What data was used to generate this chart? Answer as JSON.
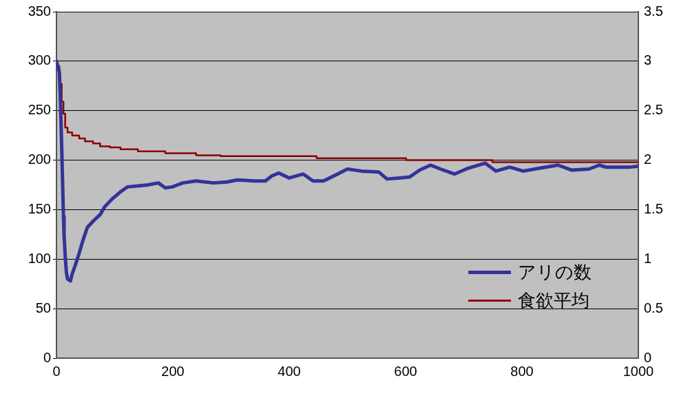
{
  "chart_data": {
    "type": "line",
    "xlim": [
      0,
      1000
    ],
    "xticks": [
      0,
      200,
      400,
      600,
      800,
      1000
    ],
    "ylim": [
      0,
      350
    ],
    "yticks": [
      0,
      50,
      100,
      150,
      200,
      250,
      300,
      350
    ],
    "y2lim": [
      0,
      3.5
    ],
    "y2ticks": [
      0,
      0.5,
      1,
      1.5,
      2,
      2.5,
      3,
      3.5
    ],
    "grid": "y",
    "legend": "bottom right",
    "marker": "none",
    "series": [
      {
        "name": "アリの数",
        "color": "#333399",
        "type": "line",
        "axis": "y",
        "x": [
          0,
          5,
          7,
          9.5,
          12,
          13,
          15,
          17,
          19,
          24,
          27,
          33,
          39,
          45,
          53,
          64,
          75,
          83,
          96,
          110,
          122,
          140,
          157,
          175,
          187,
          199,
          217,
          240,
          270,
          293,
          311,
          341,
          359,
          370,
          382,
          400,
          424,
          441,
          459,
          483,
          500,
          524,
          554,
          568,
          589,
          607,
          624,
          643,
          660,
          684,
          708,
          737,
          755,
          779,
          802,
          832,
          862,
          885,
          915,
          933,
          944,
          968,
          986,
          1000
        ],
        "values": [
          300,
          289,
          257,
          202,
          143,
          125,
          103,
          87,
          80,
          78,
          85,
          95,
          106,
          118,
          132,
          139,
          145,
          153,
          161,
          168,
          173,
          174,
          175,
          177,
          172,
          173,
          177,
          179,
          177,
          178,
          180,
          179,
          179,
          184,
          187,
          182,
          186,
          179,
          179,
          186,
          191,
          189,
          188,
          181,
          182,
          183,
          190,
          195,
          191,
          186,
          192,
          197,
          189,
          193,
          189,
          192,
          195,
          190,
          191,
          195,
          193,
          193,
          193,
          194
        ]
      },
      {
        "name": "食欲平均",
        "color": "#8b0000",
        "type": "step",
        "axis": "y2",
        "x": [
          0,
          5,
          9,
          12,
          15,
          19,
          27,
          39,
          49,
          63,
          75,
          92,
          110,
          140,
          187,
          240,
          282,
          447,
          601,
          749,
          927,
          1000
        ],
        "values": [
          3.0,
          2.95,
          2.77,
          2.59,
          2.47,
          2.33,
          2.28,
          2.25,
          2.22,
          2.19,
          2.17,
          2.14,
          2.13,
          2.11,
          2.09,
          2.07,
          2.05,
          2.04,
          2.02,
          2.0,
          1.98,
          1.98
        ]
      }
    ]
  }
}
